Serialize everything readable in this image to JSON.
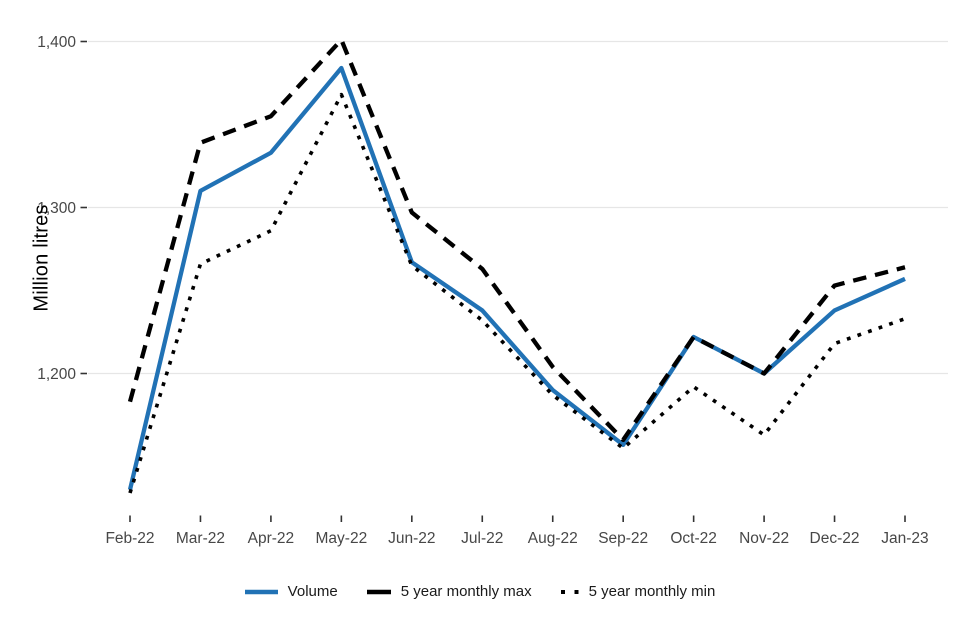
{
  "chart_data": {
    "type": "line",
    "title": "",
    "xlabel": "",
    "ylabel": "Million litres",
    "categories": [
      "Feb-22",
      "Mar-22",
      "Apr-22",
      "May-22",
      "Jun-22",
      "Jul-22",
      "Aug-22",
      "Sep-22",
      "Oct-22",
      "Nov-22",
      "Dec-22",
      "Jan-23"
    ],
    "series": [
      {
        "name": "Volume",
        "style": "solid",
        "color": "#2172B5",
        "values": [
          1130,
          1310,
          1333,
          1384,
          1267,
          1238,
          1190,
          1157,
          1222,
          1200,
          1238,
          1257
        ]
      },
      {
        "name": "5 year monthly max",
        "style": "dashed",
        "color": "#000000",
        "values": [
          1183,
          1339,
          1355,
          1401,
          1297,
          1263,
          1204,
          1160,
          1222,
          1200,
          1253,
          1264
        ]
      },
      {
        "name": "5 year monthly min",
        "style": "dotted",
        "color": "#000000",
        "values": [
          1128,
          1266,
          1286,
          1368,
          1265,
          1232,
          1187,
          1155,
          1192,
          1163,
          1218,
          1233
        ]
      }
    ],
    "y_ticks": [
      1400,
      1300,
      1200
    ],
    "y_tick_labels": [
      "1,400",
      "1,300",
      "1,200"
    ],
    "ylim": [
      1115,
      1416
    ],
    "grid": "horizontal-only",
    "gridline_color": "#E6E6E6",
    "tick_mark_color": "#333333",
    "tick_label_color": "#474747",
    "legend_position": "bottom"
  }
}
